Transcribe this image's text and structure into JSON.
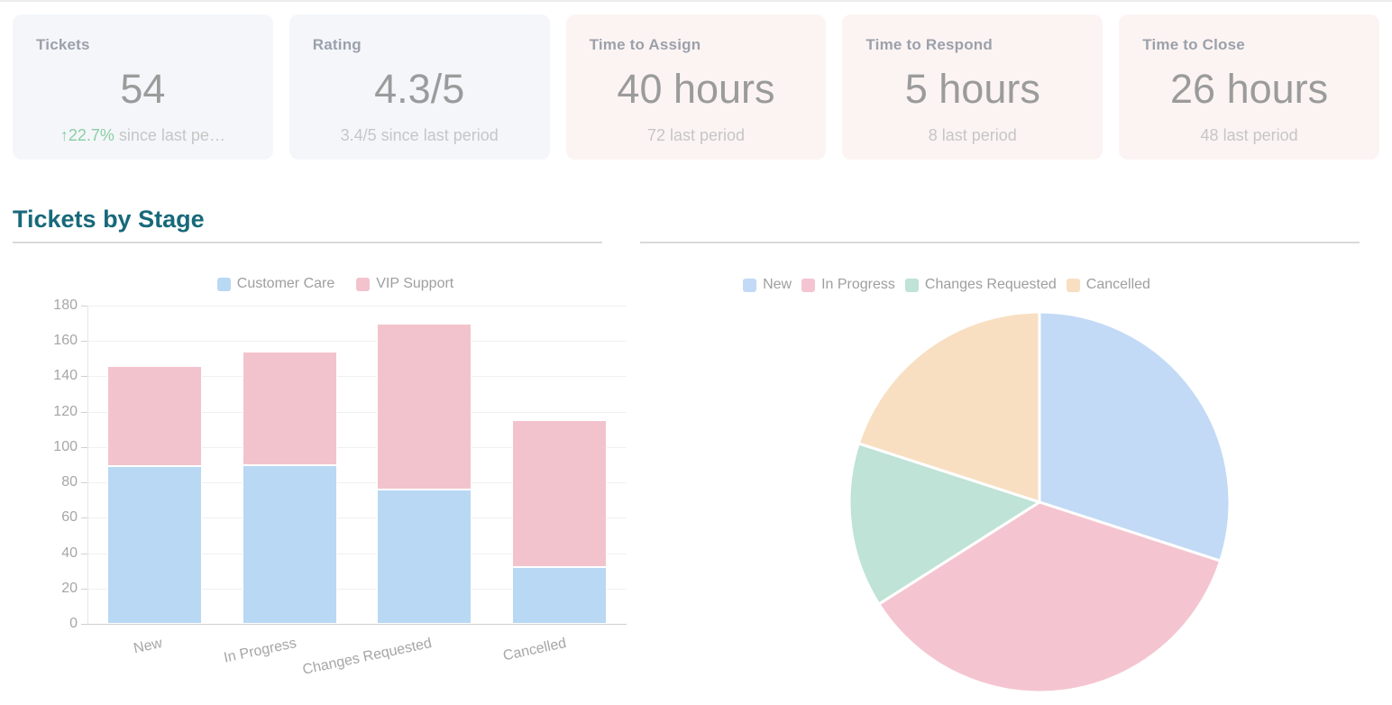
{
  "kpi_cards": [
    {
      "title": "Tickets",
      "value": "54",
      "delta": "↑22.7%",
      "footer": " since last pe…"
    },
    {
      "title": "Rating",
      "value": "4.3/5",
      "delta": "",
      "footer": "3.4/5 since last period"
    },
    {
      "title": "Time to Assign",
      "value": "40 hours",
      "delta": "",
      "footer": "72 last period"
    },
    {
      "title": "Time to Respond",
      "value": "5 hours",
      "delta": "",
      "footer": "8 last period"
    },
    {
      "title": "Time to Close",
      "value": "26 hours",
      "delta": "",
      "footer": "48 last period"
    }
  ],
  "section": {
    "title": "Tickets by Stage"
  },
  "colors": {
    "section_title": "#17697a",
    "kpi_positive": "#8bcfa4",
    "card_blue_bg": "#f4f6fa",
    "card_pink_bg": "#fcf4f3",
    "axis_text": "#a6a6a6",
    "legend_text": "#9e9e9e"
  },
  "chart_data": [
    {
      "type": "bar",
      "stacked": true,
      "title": "Tickets by Stage",
      "categories": [
        "New",
        "In Progress",
        "Changes Requested",
        "Cancelled"
      ],
      "series": [
        {
          "name": "Customer Care",
          "color": "#b9d8f4",
          "values": [
            89,
            90,
            76,
            32
          ]
        },
        {
          "name": "VIP Support",
          "color": "#f3c3cd",
          "values": [
            57,
            64,
            94,
            83
          ]
        }
      ],
      "totals": [
        146,
        154,
        170,
        115
      ],
      "xlabel": "",
      "ylabel": "",
      "ylim": [
        0,
        180
      ],
      "ytick_step": 20,
      "grid": true,
      "legend_position": "top",
      "xlabel_rotation_deg": -12
    },
    {
      "type": "pie",
      "labels": [
        "New",
        "In Progress",
        "Changes Requested",
        "Cancelled"
      ],
      "values": [
        30,
        36,
        14,
        20
      ],
      "unit": "percent",
      "colors": [
        "#c2daf5",
        "#f4c5d0",
        "#bfe3d6",
        "#f8dfc2"
      ],
      "legend_position": "top",
      "start_angle_deg": 0,
      "clockwise": true
    }
  ]
}
